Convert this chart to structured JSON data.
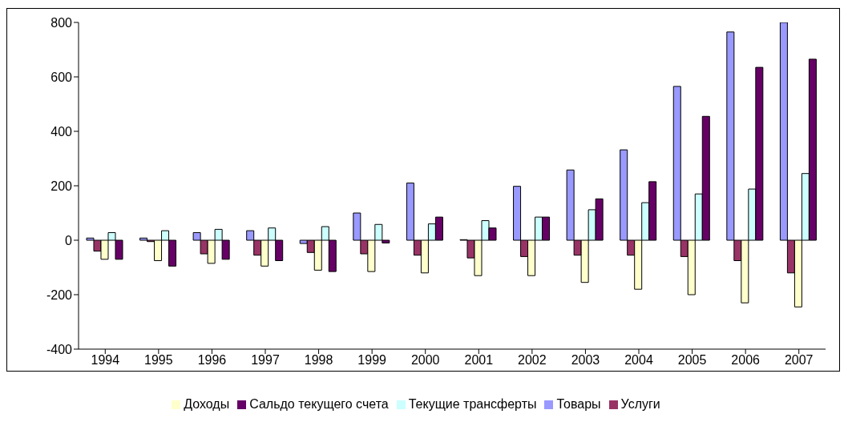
{
  "chart_data": {
    "type": "bar",
    "categories": [
      "1994",
      "1995",
      "1996",
      "1997",
      "1998",
      "1999",
      "2000",
      "2001",
      "2002",
      "2003",
      "2004",
      "2005",
      "2006",
      "2007"
    ],
    "series": [
      {
        "name": "Товары",
        "color": "#9999ff",
        "values": [
          8,
          8,
          28,
          35,
          -12,
          100,
          210,
          2,
          198,
          258,
          332,
          565,
          765,
          800
        ]
      },
      {
        "name": "Услуги",
        "color": "#993366",
        "values": [
          -40,
          -5,
          -50,
          -55,
          -45,
          -50,
          -55,
          -65,
          -60,
          -55,
          -55,
          -60,
          -75,
          -120
        ]
      },
      {
        "name": "Доходы",
        "color": "#ffffcc",
        "values": [
          -70,
          -75,
          -85,
          -95,
          -110,
          -115,
          -120,
          -130,
          -130,
          -155,
          -180,
          -200,
          -230,
          -245
        ]
      },
      {
        "name": "Текущие трансферты",
        "color": "#ccffff",
        "values": [
          28,
          35,
          40,
          45,
          50,
          58,
          60,
          72,
          85,
          112,
          138,
          170,
          188,
          245
        ]
      },
      {
        "name": "Сальдо текущего счета",
        "color": "#660066",
        "values": [
          -70,
          -95,
          -70,
          -75,
          -115,
          -10,
          85,
          45,
          85,
          152,
          215,
          455,
          635,
          665
        ]
      }
    ],
    "ylim": [
      -400,
      800
    ],
    "yticks": [
      -400,
      -200,
      0,
      200,
      400,
      600,
      800
    ],
    "grid": false,
    "legend": "bottom"
  }
}
